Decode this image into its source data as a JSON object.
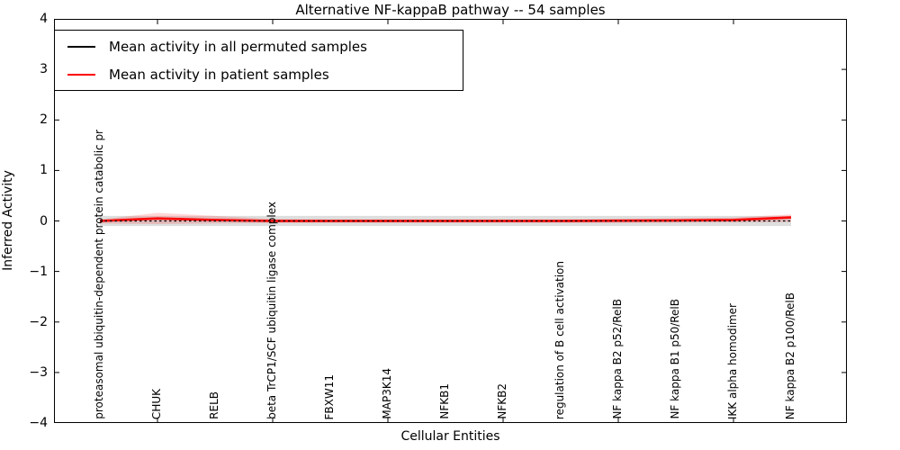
{
  "title": "Alternative NF-kappaB pathway -- 54 samples",
  "legend": {
    "items": [
      {
        "label": "Mean activity in all permuted samples",
        "color": "#000000"
      },
      {
        "label": "Mean activity in patient samples",
        "color": "#ff0000"
      }
    ]
  },
  "axes": {
    "x_label": "Cellular Entities",
    "y_label": "Inferred Activity",
    "y_ticks": [
      4,
      3,
      2,
      1,
      0,
      -1,
      -2,
      -3,
      -4
    ]
  },
  "colors": {
    "permuted_line": "#000000",
    "patient_line": "#ff0000",
    "permuted_band": "rgba(0,0,0,0.13)",
    "patient_band": "rgba(255,0,0,0.16)",
    "spine": "#000000"
  },
  "chart_data": {
    "type": "line",
    "title": "Alternative NF-kappaB pathway -- 54 samples",
    "xlabel": "Cellular Entities",
    "ylabel": "Inferred Activity",
    "ylim": [
      -4,
      4
    ],
    "grid": false,
    "legend_position": "upper left",
    "categories": [
      "proteasomal ubiquitin-dependent protein catabolic pr",
      "CHUK",
      "RELB",
      "beta TrCP1/SCF ubiquitin ligase complex",
      "FBXW11",
      "MAP3K14",
      "NFKB1",
      "NFKB2",
      "regulation of B cell activation",
      "NF kappa B2 p52/RelB",
      "NF kappa B1 p50/RelB",
      "IKK alpha homodimer",
      "NF kappa B2 p100/RelB"
    ],
    "series": [
      {
        "name": "Mean activity in all permuted samples",
        "color": "#000000",
        "style": "dashed",
        "values": [
          0,
          0,
          0,
          0,
          0,
          0,
          0,
          0,
          0,
          0,
          0,
          0,
          0
        ],
        "band_upper": [
          0.1,
          0.1,
          0.1,
          0.1,
          0.1,
          0.1,
          0.1,
          0.1,
          0.1,
          0.1,
          0.1,
          0.1,
          0.1
        ],
        "band_lower": [
          -0.1,
          -0.1,
          -0.1,
          -0.1,
          -0.1,
          -0.1,
          -0.1,
          -0.1,
          -0.1,
          -0.1,
          -0.1,
          -0.1,
          -0.1
        ]
      },
      {
        "name": "Mean activity in patient samples",
        "color": "#ff0000",
        "style": "solid",
        "values": [
          0,
          0.05,
          0.02,
          0,
          0,
          0,
          0,
          0,
          0,
          0.005,
          0.01,
          0.02,
          0.07
        ],
        "band_upper": [
          0.03,
          0.16,
          0.1,
          0.04,
          0.03,
          0.03,
          0.03,
          0.03,
          0.03,
          0.04,
          0.05,
          0.07,
          0.13
        ],
        "band_lower": [
          -0.05,
          -0.06,
          -0.05,
          -0.04,
          -0.04,
          -0.04,
          -0.04,
          -0.04,
          -0.04,
          -0.04,
          -0.035,
          -0.03,
          -0.02
        ]
      }
    ]
  }
}
